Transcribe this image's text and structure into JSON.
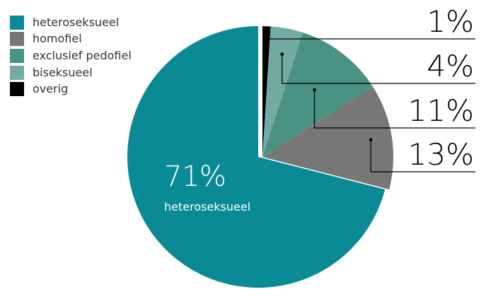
{
  "chart_data": {
    "type": "pie",
    "categories": [
      "heteroseksueel",
      "homofiel",
      "exclusief pedofiel",
      "biseksueel",
      "overig"
    ],
    "values": [
      71,
      13,
      11,
      4,
      1
    ],
    "value_labels": [
      "71%",
      "13%",
      "11%",
      "4%",
      "1%"
    ],
    "colors": [
      "#0a8a94",
      "#777777",
      "#4a9283",
      "#72aba1",
      "#000000"
    ],
    "exploded": "heteroseksueel",
    "legend_position": "top-left",
    "center_label": {
      "value": "71%",
      "category": "heteroseksueel"
    }
  }
}
